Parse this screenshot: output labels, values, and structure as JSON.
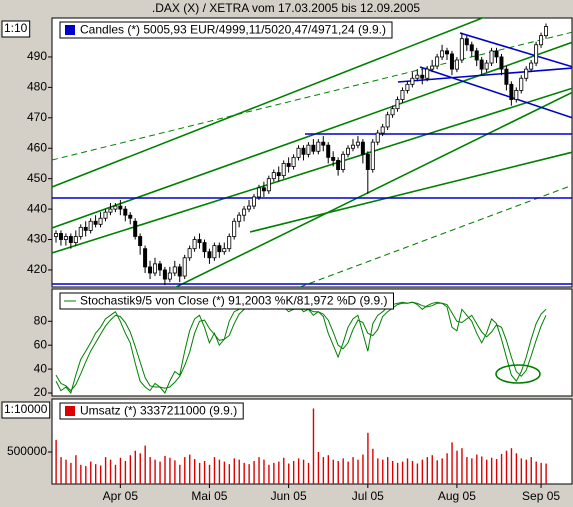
{
  "chart_data": [
    {
      "type": "candlestick",
      "title": ".DAX (X) / XETRA vom 17.03.2005 bis 12.09.2005",
      "legend": "Candles (*) 5005,93 EUR/4999,11/5020,47/4971,24 (9.9.)",
      "legend_color": "#0000cc",
      "scale_label": "1:10",
      "up_color": "#ffffff",
      "down_color": "#000000",
      "ylim": [
        414.4,
        502.8
      ],
      "yticks": [
        420,
        430,
        440,
        450,
        460,
        470,
        480,
        490
      ],
      "categories": [
        null,
        null,
        null,
        null,
        null,
        null,
        null,
        null,
        null,
        null,
        null,
        null,
        null,
        "Apr 05",
        null,
        null,
        null,
        null,
        null,
        null,
        null,
        null,
        null,
        null,
        null,
        null,
        null,
        null,
        null,
        null,
        null,
        "Mai 05",
        null,
        null,
        null,
        null,
        null,
        null,
        null,
        null,
        null,
        null,
        null,
        null,
        null,
        null,
        null,
        "Jun 05",
        null,
        null,
        null,
        null,
        null,
        null,
        null,
        null,
        null,
        null,
        null,
        null,
        null,
        null,
        null,
        "Jul 05",
        null,
        null,
        null,
        null,
        null,
        null,
        null,
        null,
        null,
        null,
        null,
        null,
        null,
        null,
        null,
        null,
        null,
        "Aug 05",
        null,
        null,
        null,
        null,
        null,
        null,
        null,
        null,
        null,
        null,
        null,
        null,
        null,
        null,
        null,
        null,
        "Sep 05",
        null
      ],
      "open": [
        431,
        432,
        430,
        431,
        429,
        431,
        434,
        433,
        436,
        435,
        437,
        439,
        440,
        441,
        440,
        438,
        436,
        431,
        427,
        421,
        419,
        422,
        420,
        417,
        419,
        421,
        418,
        424,
        427,
        430,
        429,
        426,
        424,
        428,
        426,
        427,
        431,
        436,
        438,
        440,
        441,
        444,
        447,
        446,
        450,
        452,
        451,
        455,
        454,
        457,
        460,
        458,
        461,
        459,
        462,
        461,
        457,
        456,
        453,
        458,
        460,
        461,
        462,
        458,
        453,
        462,
        465,
        467,
        471,
        473,
        476,
        479,
        481,
        483,
        484,
        483,
        486,
        487,
        490,
        492,
        491,
        486,
        489,
        496,
        494,
        492,
        489,
        486,
        488,
        492,
        490,
        486,
        481,
        476,
        479,
        483,
        486,
        488,
        494,
        497
      ],
      "high": [
        433,
        433,
        432,
        432,
        433,
        435,
        436,
        437,
        438,
        439,
        440,
        442,
        442,
        443,
        441,
        439,
        437,
        432,
        428,
        423,
        424,
        423,
        421,
        421,
        423,
        422,
        425,
        428,
        431,
        432,
        430,
        427,
        429,
        429,
        429,
        432,
        437,
        439,
        441,
        443,
        445,
        448,
        449,
        451,
        453,
        454,
        456,
        457,
        458,
        461,
        461,
        462,
        463,
        463,
        464,
        462,
        459,
        457,
        459,
        461,
        463,
        464,
        463,
        459,
        463,
        466,
        468,
        472,
        474,
        477,
        480,
        482,
        485,
        486,
        486,
        487,
        489,
        491,
        494,
        493,
        492,
        490,
        498,
        497,
        495,
        493,
        490,
        489,
        493,
        493,
        491,
        487,
        482,
        480,
        484,
        487,
        489,
        495,
        498,
        501
      ],
      "low": [
        429,
        428,
        428,
        427,
        428,
        430,
        431,
        432,
        434,
        434,
        436,
        438,
        439,
        438,
        436,
        435,
        430,
        425,
        419,
        417,
        418,
        418,
        415,
        416,
        418,
        416,
        417,
        423,
        426,
        427,
        424,
        422,
        423,
        424,
        425,
        426,
        430,
        434,
        436,
        439,
        440,
        443,
        444,
        445,
        449,
        449,
        450,
        452,
        453,
        456,
        456,
        457,
        458,
        458,
        459,
        455,
        454,
        451,
        452,
        457,
        459,
        460,
        455,
        445,
        452,
        461,
        464,
        466,
        470,
        472,
        475,
        478,
        480,
        482,
        481,
        482,
        485,
        486,
        489,
        489,
        484,
        485,
        488,
        492,
        490,
        487,
        484,
        485,
        487,
        488,
        484,
        479,
        474,
        475,
        478,
        482,
        485,
        487,
        493,
        496
      ],
      "close": [
        432,
        430,
        431,
        429,
        431,
        434,
        433,
        436,
        435,
        437,
        439,
        440,
        441,
        440,
        438,
        437,
        431,
        428,
        421,
        419,
        422,
        420,
        417,
        419,
        421,
        418,
        424,
        427,
        430,
        429,
        426,
        424,
        428,
        426,
        427,
        431,
        436,
        438,
        440,
        441,
        444,
        447,
        446,
        450,
        452,
        451,
        455,
        454,
        457,
        460,
        458,
        461,
        459,
        462,
        461,
        457,
        456,
        453,
        458,
        460,
        461,
        462,
        458,
        453,
        462,
        465,
        467,
        471,
        473,
        476,
        479,
        481,
        483,
        484,
        483,
        486,
        487,
        490,
        492,
        491,
        486,
        489,
        496,
        494,
        492,
        489,
        486,
        488,
        492,
        490,
        486,
        481,
        476,
        479,
        483,
        486,
        488,
        494,
        497,
        500
      ]
    },
    {
      "type": "line",
      "legend": "Stochastik9/5 von Close (*) 91,2003 %K/81,972 %D (9.9.)",
      "legend_color": "#008000",
      "ylim": [
        17.5,
        107
      ],
      "yticks": [
        20,
        40,
        60,
        80
      ],
      "series": [
        {
          "color": "#008000",
          "values": [
            30,
            22,
            25,
            20,
            35,
            48,
            55,
            62,
            70,
            75,
            82,
            85,
            88,
            80,
            70,
            62,
            45,
            30,
            25,
            22,
            28,
            25,
            20,
            30,
            38,
            35,
            55,
            72,
            82,
            85,
            75,
            62,
            70,
            60,
            65,
            80,
            88,
            90,
            92,
            90,
            93,
            95,
            90,
            92,
            94,
            90,
            92,
            88,
            90,
            93,
            88,
            90,
            85,
            88,
            84,
            70,
            60,
            50,
            62,
            75,
            82,
            85,
            70,
            55,
            78,
            85,
            88,
            92,
            94,
            95,
            96,
            95,
            96,
            94,
            90,
            93,
            95,
            96,
            95,
            92,
            75,
            72,
            90,
            85,
            80,
            70,
            62,
            70,
            82,
            78,
            65,
            50,
            35,
            30,
            38,
            50,
            65,
            78,
            86,
            90
          ]
        },
        {
          "color": "#008000",
          "values": [
            35,
            28,
            26,
            22,
            27,
            36,
            46,
            55,
            62,
            69,
            76,
            81,
            85,
            84,
            79,
            71,
            59,
            46,
            33,
            26,
            25,
            25,
            24,
            25,
            29,
            34,
            43,
            54,
            70,
            80,
            81,
            74,
            69,
            64,
            65,
            68,
            78,
            86,
            90,
            91,
            92,
            93,
            93,
            92,
            92,
            92,
            92,
            90,
            90,
            90,
            90,
            90,
            88,
            88,
            86,
            81,
            71,
            60,
            57,
            62,
            73,
            81,
            79,
            70,
            68,
            73,
            84,
            88,
            91,
            94,
            95,
            95,
            96,
            95,
            93,
            92,
            93,
            95,
            95,
            94,
            87,
            80,
            79,
            82,
            85,
            78,
            71,
            67,
            71,
            77,
            75,
            64,
            50,
            38,
            34,
            39,
            51,
            64,
            76,
            85
          ]
        }
      ]
    },
    {
      "type": "bar",
      "legend": "Umsatz (*) 3337211000 (9.9.)",
      "legend_color": "#dd0000",
      "color": "#dd0000",
      "scale_label": "1:10000",
      "ylim": [
        0,
        1328000
      ],
      "yticks": [
        500000
      ],
      "values": [
        690000,
        420000,
        380000,
        330000,
        450000,
        300000,
        280000,
        350000,
        310000,
        290000,
        420000,
        380000,
        300000,
        410000,
        360000,
        450000,
        520000,
        480000,
        600000,
        420000,
        380000,
        350000,
        440000,
        410000,
        370000,
        300000,
        420000,
        460000,
        390000,
        330000,
        360000,
        300000,
        420000,
        380000,
        350000,
        310000,
        400000,
        380000,
        330000,
        310000,
        360000,
        420000,
        380000,
        300000,
        330000,
        350000,
        410000,
        320000,
        360000,
        400000,
        380000,
        330000,
        1180000,
        500000,
        420000,
        450000,
        380000,
        360000,
        400000,
        350000,
        420000,
        380000,
        460000,
        800000,
        550000,
        400000,
        380000,
        420000,
        360000,
        330000,
        350000,
        400000,
        360000,
        320000,
        380000,
        420000,
        450000,
        370000,
        400000,
        480000,
        650000,
        520000,
        560000,
        420000,
        400000,
        460000,
        430000,
        380000,
        410000,
        390000,
        470000,
        520000,
        560000,
        480000,
        400000,
        380000,
        420000,
        350000,
        330000,
        320000
      ]
    }
  ]
}
